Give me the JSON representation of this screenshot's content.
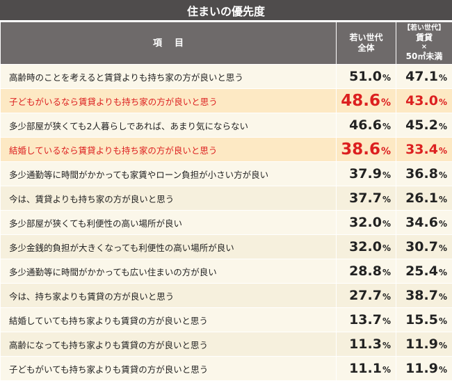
{
  "header": {
    "title": "住まいの優先度",
    "col_item": "項目",
    "col_all_line1": "若い世代",
    "col_all_line2": "全体",
    "col_rent_line1": "【若い世代】",
    "col_rent_line2": "賃貸",
    "col_rent_line3": "×",
    "col_rent_line4": "50㎡未満"
  },
  "colors": {
    "header_bg": "#4f4c4c",
    "header_row_bg": "#6e6a6a",
    "row_bg": "#f6f0dd",
    "highlight_bg": "#fde9c4",
    "highlight_text": "#dc1f1f"
  },
  "chart_data": {
    "type": "table",
    "title": "住まいの優先度",
    "columns": [
      "若い世代 全体",
      "【若い世代】賃貸 × 50㎡未満"
    ],
    "unit": "%",
    "rows": [
      {
        "label": "高齢時のことを考えると賃貸よりも持ち家の方が良いと思う",
        "all": "51.0",
        "rent": "47.1",
        "highlight": false
      },
      {
        "label": "子どもがいるなら賃貸よりも持ち家の方が良いと思う",
        "all": "48.6",
        "rent": "43.0",
        "highlight": true
      },
      {
        "label": "多少部屋が狭くても2人暮らしであれば、あまり気にならない",
        "all": "46.6",
        "rent": "45.2",
        "highlight": false
      },
      {
        "label": "結婚しているなら賃貸よりも持ち家の方が良いと思う",
        "all": "38.6",
        "rent": "33.4",
        "highlight": true
      },
      {
        "label": "多少通勤等に時間がかかっても家賃やローン負担が小さい方が良い",
        "all": "37.9",
        "rent": "36.8",
        "highlight": false
      },
      {
        "label": "今は、賃貸よりも持ち家の方が良いと思う",
        "all": "37.7",
        "rent": "26.1",
        "highlight": false
      },
      {
        "label": "多少部屋が狭くても利便性の高い場所が良い",
        "all": "32.0",
        "rent": "34.6",
        "highlight": false
      },
      {
        "label": "多少金銭的負担が大きくなっても利便性の高い場所が良い",
        "all": "32.0",
        "rent": "30.7",
        "highlight": false
      },
      {
        "label": "多少通勤等に時間がかかっても広い住まいの方が良い",
        "all": "28.8",
        "rent": "25.4",
        "highlight": false
      },
      {
        "label": "今は、持ち家よりも賃貸の方が良いと思う",
        "all": "27.7",
        "rent": "38.7",
        "highlight": false
      },
      {
        "label": "結婚していても持ち家よりも賃貸の方が良いと思う",
        "all": "13.7",
        "rent": "15.5",
        "highlight": false
      },
      {
        "label": "高齢になっても持ち家よりも賃貸の方が良いと思う",
        "all": "11.3",
        "rent": "11.9",
        "highlight": false
      },
      {
        "label": "子どもがいても持ち家よりも賃貸の方が良いと思う",
        "all": "11.1",
        "rent": "11.9",
        "highlight": false
      }
    ]
  }
}
